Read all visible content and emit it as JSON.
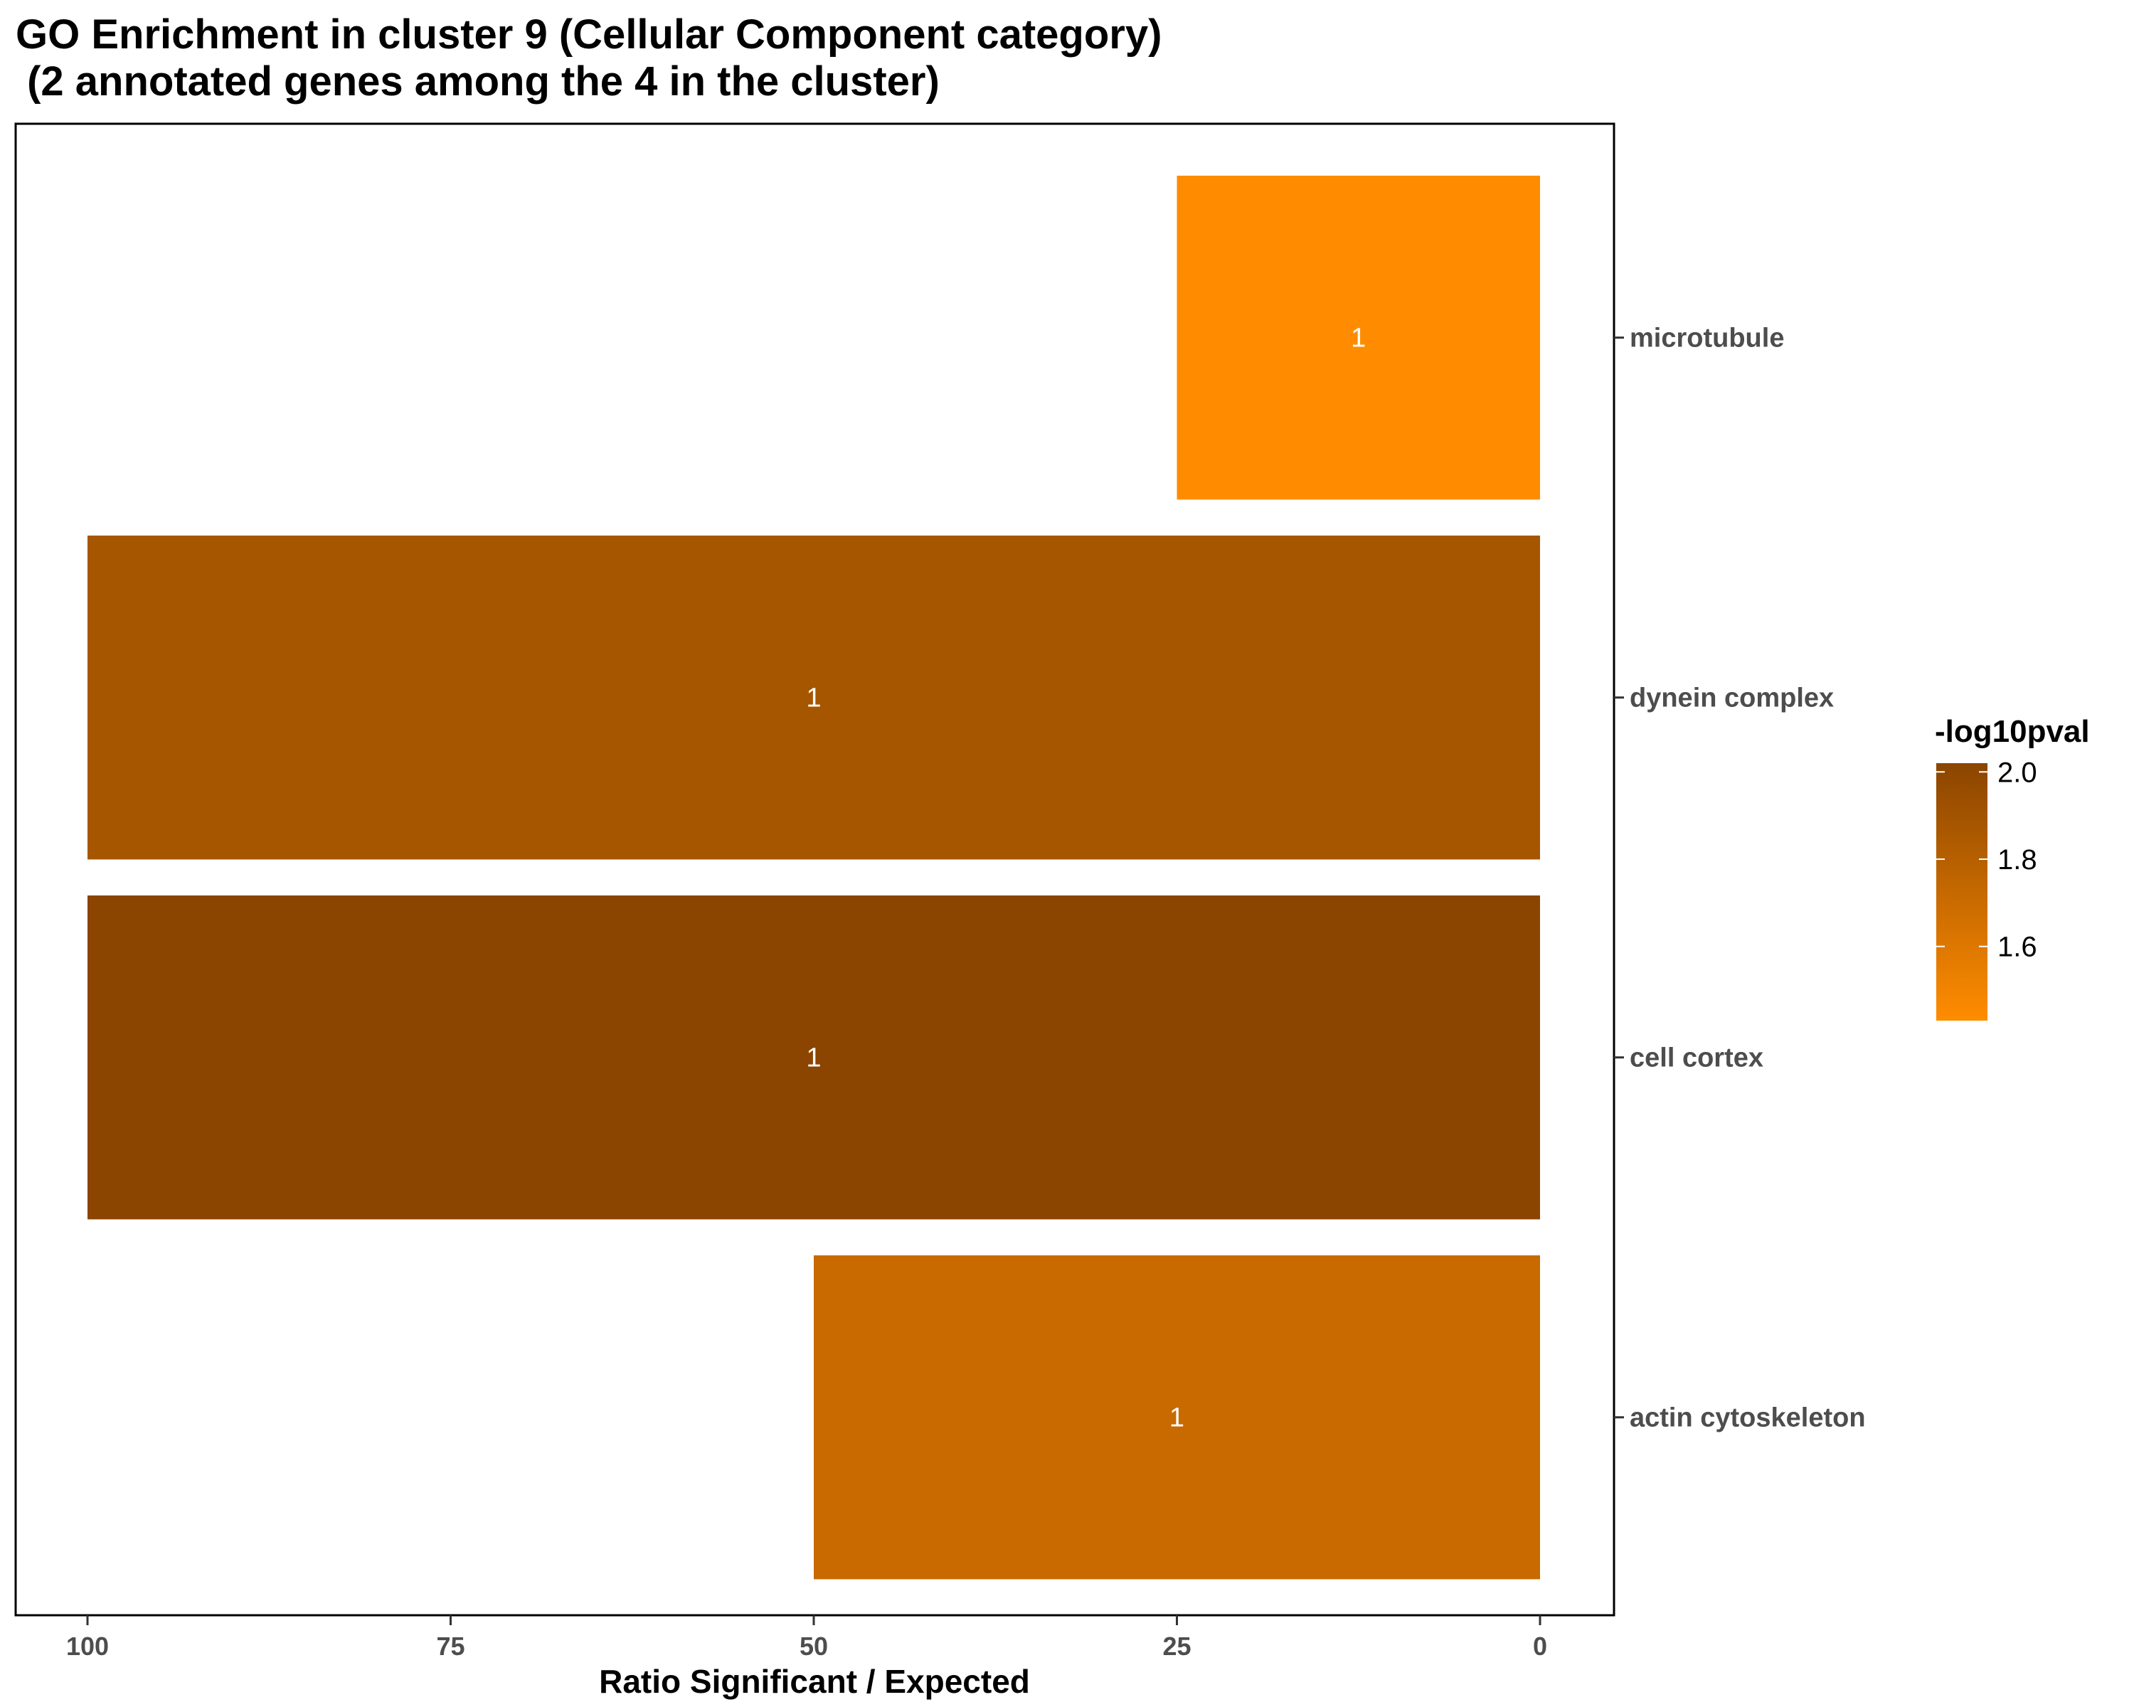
{
  "chart_data": {
    "type": "bar",
    "orientation": "horizontal",
    "title_line1": "GO Enrichment in cluster 9 (Cellular Component category)",
    "title_line2": " (2 annotated genes among the 4 in the cluster)",
    "xlabel": "Ratio Significant / Expected",
    "ylabel": "",
    "xlim": [
      100,
      0
    ],
    "x_reversed": true,
    "x_ticks": [
      100,
      75,
      50,
      25,
      0
    ],
    "y_axis_position": "right",
    "grid": false,
    "categories": [
      "microtubule",
      "dynein complex",
      "cell cortex",
      "actin cytoskeleton"
    ],
    "values": [
      25,
      100,
      100,
      50
    ],
    "bar_labels": [
      "1",
      "1",
      "1",
      "1"
    ],
    "color_values": [
      1.43,
      1.88,
      2.02,
      1.71
    ],
    "legend": {
      "title": "-log10pval",
      "placement": "right",
      "min": 1.43,
      "max": 2.02,
      "ticks": [
        2.0,
        1.8,
        1.6
      ],
      "low_color": "#FF8C00",
      "high_color": "#8B4500"
    }
  }
}
